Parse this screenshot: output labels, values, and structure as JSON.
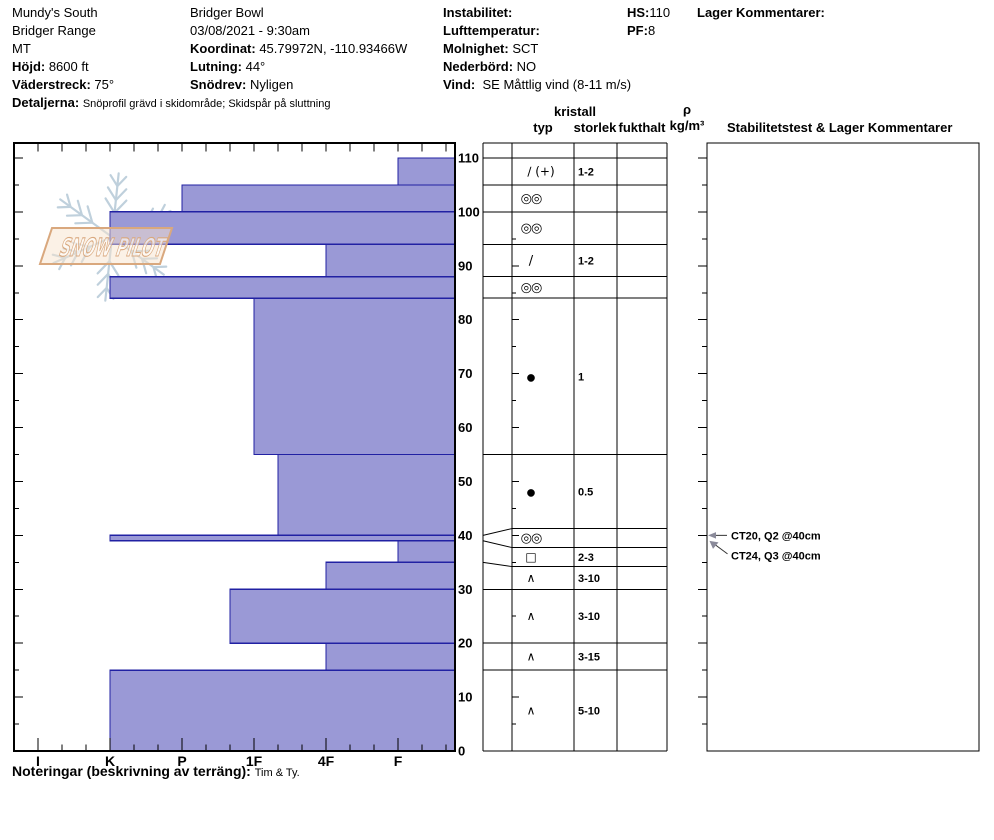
{
  "header": {
    "col1": [
      {
        "b": "",
        "t": "Mundy's South"
      },
      {
        "b": "",
        "t": "Bridger Range"
      },
      {
        "b": "",
        "t": "MT"
      },
      {
        "b": "Höjd: ",
        "t": "8600 ft"
      },
      {
        "b": "Väderstreck: ",
        "t": "75°"
      }
    ],
    "col2": [
      {
        "b": "",
        "t": "Bridger Bowl"
      },
      {
        "b": "",
        "t": "03/08/2021 - 9:30am"
      },
      {
        "b": "Koordinat: ",
        "t": "45.79972N, -110.93466W"
      },
      {
        "b": "Lutning: ",
        "t": "44°"
      },
      {
        "b": "Snödrev: ",
        "t": "Nyligen"
      }
    ],
    "col3": [
      {
        "b": "Instabilitet:",
        "t": ""
      },
      {
        "b": "Lufttemperatur:",
        "t": ""
      },
      {
        "b": "Molnighet: ",
        "t": "SCT"
      },
      {
        "b": "Nederbörd: ",
        "t": "NO"
      },
      {
        "b": "Vind:  ",
        "t": "SE Måttlig vind (8-11 m/s)"
      }
    ],
    "col4": [
      {
        "b": "HS:",
        "t": "110"
      },
      {
        "b": "PF:",
        "t": "8"
      }
    ],
    "col5": [
      {
        "b": "Lager Kommentarer:",
        "t": ""
      }
    ],
    "detaljerna": {
      "b": "Detaljerna: ",
      "t": "Snöprofil grävd i skidområde;  Skidspår på sluttning"
    }
  },
  "logo": {
    "text": "SNOW PILOT"
  },
  "table_headers": {
    "typ": "typ",
    "kristall": "kristall",
    "storlek": "storlek",
    "fukthalt": "fukthalt",
    "rho": "ρ",
    "rho_unit": "kg/m³",
    "stab": "Stabilitetstest & Lager Kommentarer"
  },
  "footer": {
    "b": "Noteringar (beskrivning av terräng): ",
    "t": "Tim & Ty."
  },
  "chart_data": {
    "type": "bar",
    "subtype": "snow-profile-hardness",
    "hs_cm": 110,
    "depth_axis": {
      "unit": "cm",
      "min": 0,
      "max": 110,
      "minor_tick": 5,
      "major_tick": 10,
      "labels": [
        "0",
        "10",
        "20",
        "30",
        "40",
        "50",
        "60",
        "70",
        "80",
        "90",
        "100",
        "110"
      ]
    },
    "hardness_axis": {
      "labels": [
        "I",
        "K",
        "P",
        "1F",
        "4F",
        "F"
      ],
      "orientation": "hardest (I) at left, softest (F) at right; bars grow leftward from right edge"
    },
    "layers": [
      {
        "top_cm": 110,
        "bottom_cm": 105,
        "hardness": "F",
        "grain_symbol": "∕ (+)",
        "grain_size_mm": "1-2"
      },
      {
        "top_cm": 105,
        "bottom_cm": 100,
        "hardness": "P",
        "grain_symbol": "◎◎",
        "grain_size_mm": ""
      },
      {
        "top_cm": 100,
        "bottom_cm": 94,
        "hardness": "K",
        "grain_symbol": "◎◎",
        "grain_size_mm": ""
      },
      {
        "top_cm": 94,
        "bottom_cm": 88,
        "hardness": "4F",
        "grain_symbol": "∕",
        "grain_size_mm": "1-2"
      },
      {
        "top_cm": 88,
        "bottom_cm": 84,
        "hardness": "K",
        "grain_symbol": "◎◎",
        "grain_size_mm": ""
      },
      {
        "top_cm": 84,
        "bottom_cm": 55,
        "hardness": "1F",
        "grain_symbol": "●",
        "grain_size_mm": "1"
      },
      {
        "top_cm": 55,
        "bottom_cm": 40,
        "hardness": "1F-",
        "grain_symbol": "●",
        "grain_size_mm": "0.5"
      },
      {
        "top_cm": 40,
        "bottom_cm": 39,
        "hardness": "K",
        "grain_symbol": "◎◎",
        "grain_size_mm": ""
      },
      {
        "top_cm": 39,
        "bottom_cm": 35,
        "hardness": "F",
        "grain_symbol": "□",
        "grain_size_mm": "2-3"
      },
      {
        "top_cm": 35,
        "bottom_cm": 30,
        "hardness": "4F",
        "grain_symbol": "∧",
        "grain_size_mm": "3-10"
      },
      {
        "top_cm": 30,
        "bottom_cm": 20,
        "hardness": "1F+",
        "grain_symbol": "∧",
        "grain_size_mm": "3-10"
      },
      {
        "top_cm": 20,
        "bottom_cm": 15,
        "hardness": "4F",
        "grain_symbol": "∧",
        "grain_size_mm": "3-15"
      },
      {
        "top_cm": 15,
        "bottom_cm": 0,
        "hardness": "K",
        "grain_symbol": "∧",
        "grain_size_mm": "5-10"
      }
    ],
    "stability_tests": [
      {
        "label": "CT20, Q2 @40cm",
        "depth_cm": 40
      },
      {
        "label": "CT24, Q3 @40cm",
        "depth_cm": 40
      }
    ],
    "colors": {
      "bar_fill": "#9a99d6",
      "bar_stroke": "#2121a3",
      "frame": "#000000",
      "arrow": "#8a8a9a",
      "logo_snowflake": "#b9ccd9",
      "logo_banner_stroke": "#d9a87e",
      "logo_banner_fill": "#f7e3cf"
    }
  }
}
